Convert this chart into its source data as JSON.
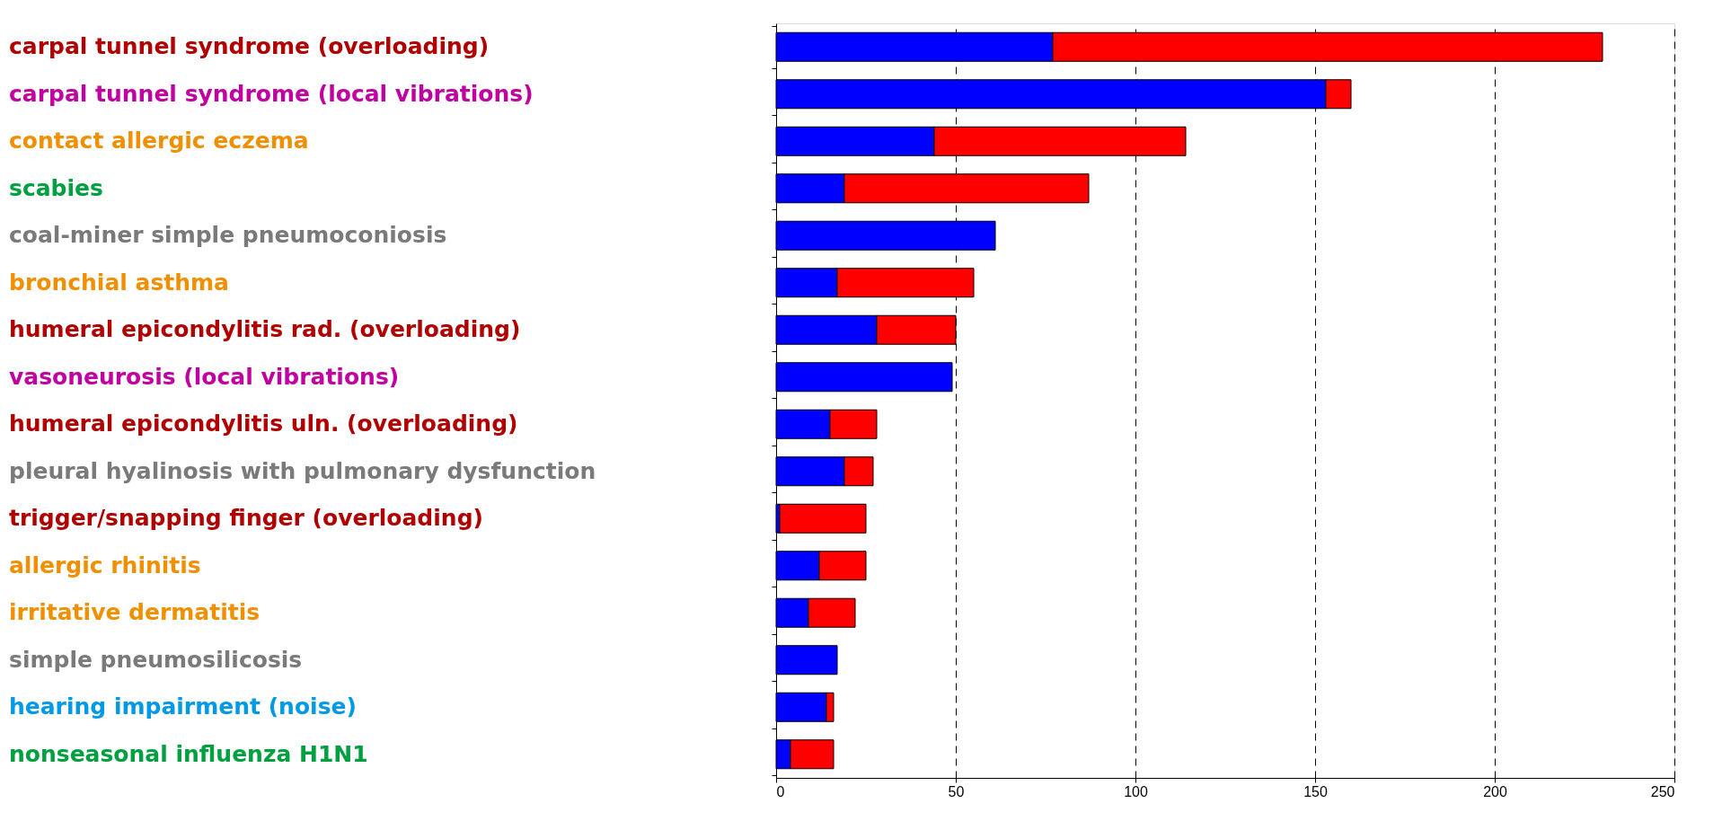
{
  "chart_data": {
    "type": "bar",
    "orientation": "horizontal",
    "stacked": true,
    "categories": [
      "carpal tunnel syndrome (overloading)",
      "carpal tunnel syndrome (local vibrations)",
      "contact allergic eczema",
      "scabies",
      "coal-miner simple pneumoconiosis",
      "bronchial asthma",
      "humeral epicondylitis rad. (overloading)",
      "vasoneurosis (local vibrations)",
      "humeral epicondylitis uln. (overloading)",
      "pleural hyalinosis with pulmonary dysfunction",
      "trigger/snapping finger (overloading)",
      "allergic rhinitis",
      "irritative dermatitis",
      "simple pneumosilicosis",
      "hearing impairment (noise)",
      "nonseasonal influenza H1N1"
    ],
    "series": [
      {
        "color": "#0000ff",
        "values": [
          77,
          153,
          44,
          19,
          61,
          17,
          28,
          49,
          15,
          19,
          1,
          12,
          9,
          17,
          14,
          4
        ]
      },
      {
        "color": "#ff0000",
        "values": [
          153,
          7,
          70,
          68,
          0,
          38,
          22,
          0,
          13,
          8,
          24,
          13,
          13,
          0,
          2,
          12
        ]
      }
    ],
    "xlim": [
      0,
      250
    ],
    "xticks": [
      0,
      50,
      100,
      150,
      200,
      250
    ],
    "grid": "x",
    "tick_labels": "x"
  }
}
